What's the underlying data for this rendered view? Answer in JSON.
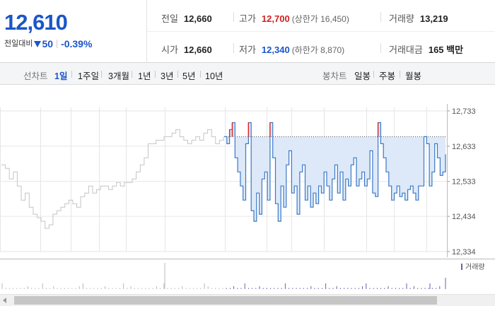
{
  "summary": {
    "current_price": "12,610",
    "change_label": "전일대비",
    "change_amount": "50",
    "change_percent": "-0.39%",
    "prev_close": {
      "label": "전일",
      "value": "12,660"
    },
    "open": {
      "label": "시가",
      "value": "12,660"
    },
    "high": {
      "label": "고가",
      "value": "12,700",
      "limit_label": "(상한가 16,450)"
    },
    "low": {
      "label": "저가",
      "value": "12,340",
      "limit_label": "(하한가 8,870)"
    },
    "volume": {
      "label": "거래량",
      "value": "13,219"
    },
    "amount": {
      "label": "거래대금",
      "value": "165 백만"
    }
  },
  "toolbar": {
    "line_label": "선차트",
    "line_periods": [
      "1일",
      "1주일",
      "3개월",
      "1년",
      "3년",
      "5년",
      "10년"
    ],
    "active_period": "1일",
    "candle_label": "봉차트",
    "candle_periods": [
      "일봉",
      "주봉",
      "월봉"
    ]
  },
  "chart_data": {
    "type": "line",
    "title": "",
    "xlabel": "",
    "ylabel": "",
    "yticks": [
      12334,
      12434,
      12533,
      12633,
      12733
    ],
    "ytick_labels": [
      "12,334",
      "12,434",
      "12,533",
      "12,633",
      "12,733"
    ],
    "ylim": [
      12334,
      12733
    ],
    "prev_close": 12660,
    "colors": {
      "line": "#3a78c8",
      "fill": "#dde9f8",
      "prior_line": "#c4c4c4",
      "up": "#e0211f",
      "grid": "#e6e6e6",
      "volume": "#6b5fa8"
    },
    "prior_series": [
      12580,
      12570,
      12540,
      12560,
      12520,
      12480,
      12500,
      12460,
      12440,
      12430,
      12420,
      12400,
      12410,
      12440,
      12450,
      12460,
      12470,
      12480,
      12470,
      12460,
      12490,
      12500,
      12520,
      12500,
      12510,
      12520,
      12520,
      12510,
      12520,
      12530,
      12520,
      12530,
      12530,
      12540,
      12560,
      12580,
      12600,
      12640,
      12640,
      12650,
      12650,
      12660,
      12660,
      12670,
      12680,
      12660,
      12650,
      12640,
      12650,
      12660,
      12650,
      12670,
      12680,
      12660,
      12640,
      12650,
      12660
    ],
    "series": [
      12660,
      12640,
      12680,
      12700,
      12600,
      12560,
      12520,
      12480,
      12640,
      12700,
      12450,
      12420,
      12500,
      12440,
      12540,
      12560,
      12480,
      12700,
      12600,
      12470,
      12420,
      12520,
      12460,
      12580,
      12620,
      12500,
      12520,
      12440,
      12560,
      12580,
      12480,
      12520,
      12460,
      12500,
      12470,
      12520,
      12500,
      12560,
      12520,
      12480,
      12540,
      12580,
      12500,
      12560,
      12480,
      12540,
      12520,
      12580,
      12600,
      12520,
      12540,
      12560,
      12520,
      12540,
      12620,
      12500,
      12490,
      12700,
      12640,
      12600,
      12560,
      12520,
      12480,
      12500,
      12520,
      12490,
      12500,
      12480,
      12510,
      12520,
      12500,
      12480,
      12520,
      12520,
      12660,
      12640,
      12520,
      12560,
      12640,
      12600,
      12550,
      12560,
      12610
    ],
    "volume_legend": "거래량"
  }
}
